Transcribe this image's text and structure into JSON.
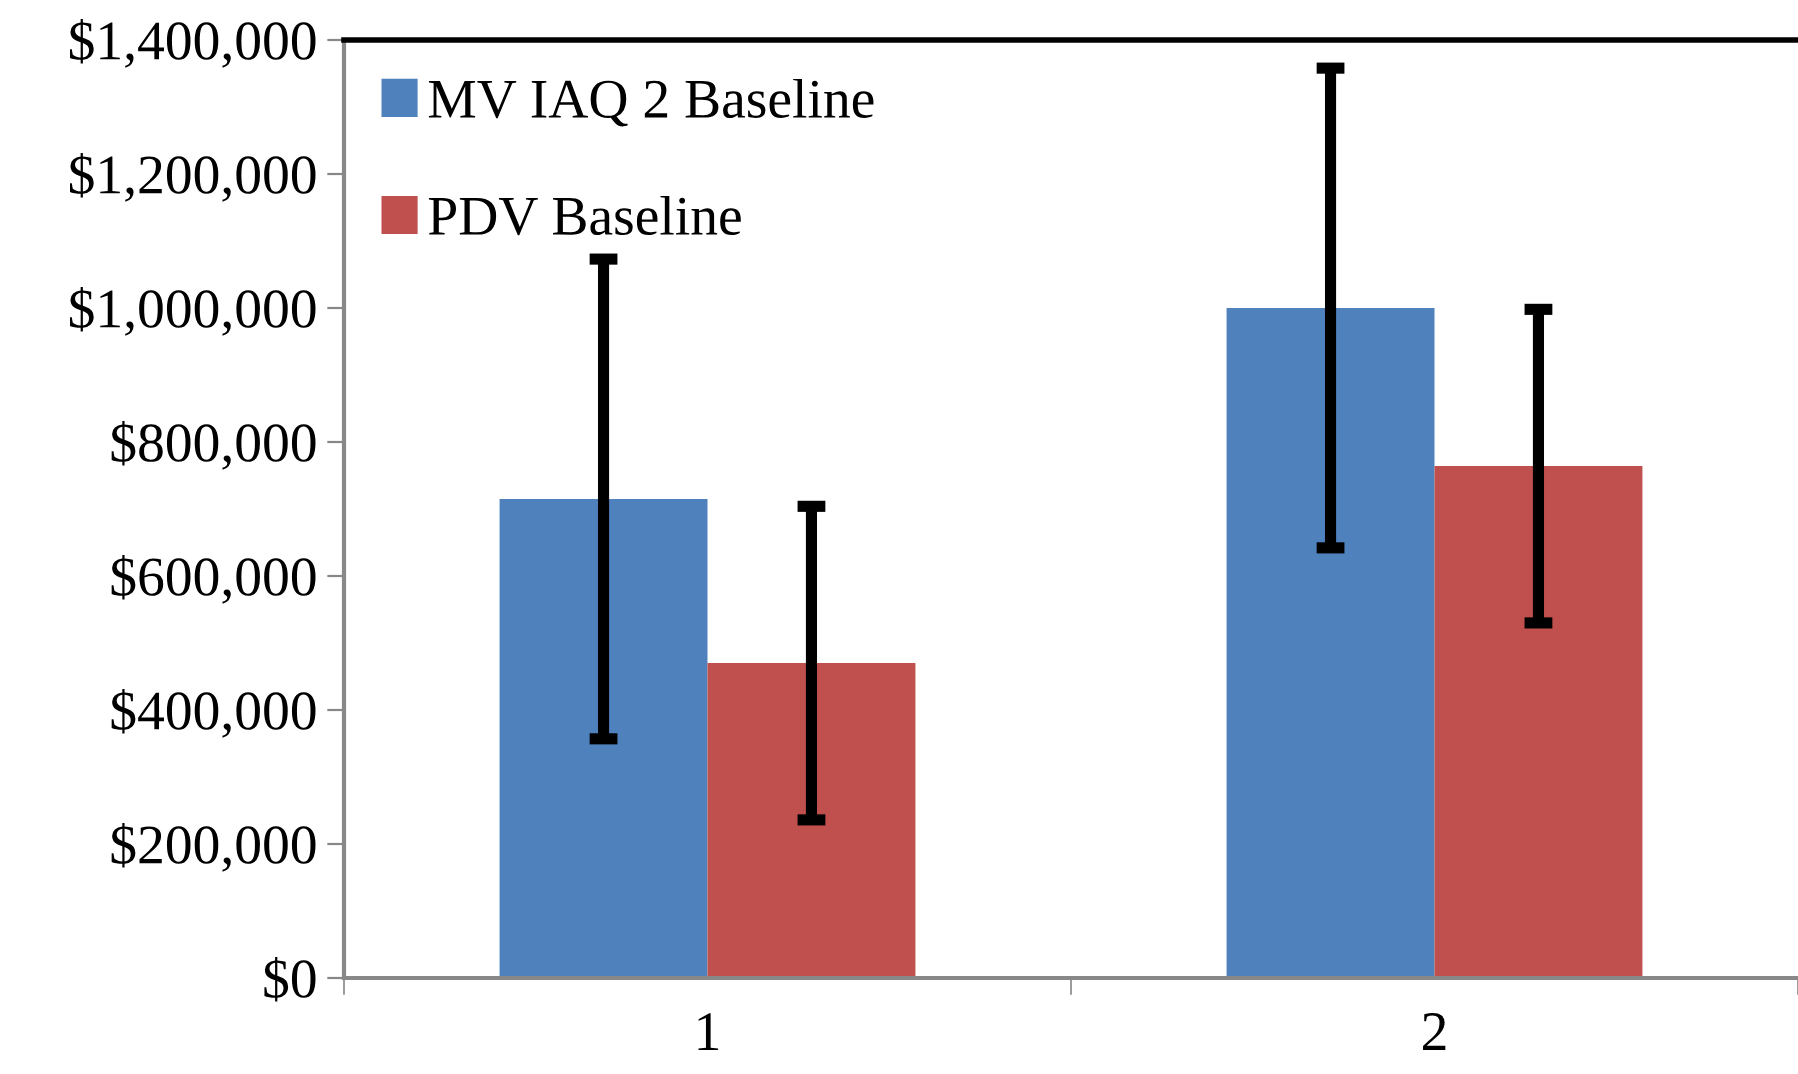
{
  "chart_data": {
    "type": "bar",
    "categories": [
      "1",
      "2"
    ],
    "series": [
      {
        "name": "MV IAQ 2 Baseline",
        "color": "#4f81bd",
        "values": [
          715000,
          1000000
        ],
        "errors": [
          358000,
          358000
        ]
      },
      {
        "name": "PDV Baseline",
        "color": "#c0504d",
        "values": [
          470000,
          764000
        ],
        "errors": [
          234000,
          234000
        ]
      }
    ],
    "ylim": [
      0,
      1400000
    ],
    "yticks": [
      {
        "value": 0,
        "label": "$0"
      },
      {
        "value": 200000,
        "label": "$200,000"
      },
      {
        "value": 400000,
        "label": "$400,000"
      },
      {
        "value": 600000,
        "label": "$600,000"
      },
      {
        "value": 800000,
        "label": "$800,000"
      },
      {
        "value": 1000000,
        "label": "$1,000,000"
      },
      {
        "value": 1200000,
        "label": "$1,200,000"
      },
      {
        "value": 1400000,
        "label": "$1,400,000"
      }
    ],
    "grid": false,
    "legend": "top left"
  }
}
